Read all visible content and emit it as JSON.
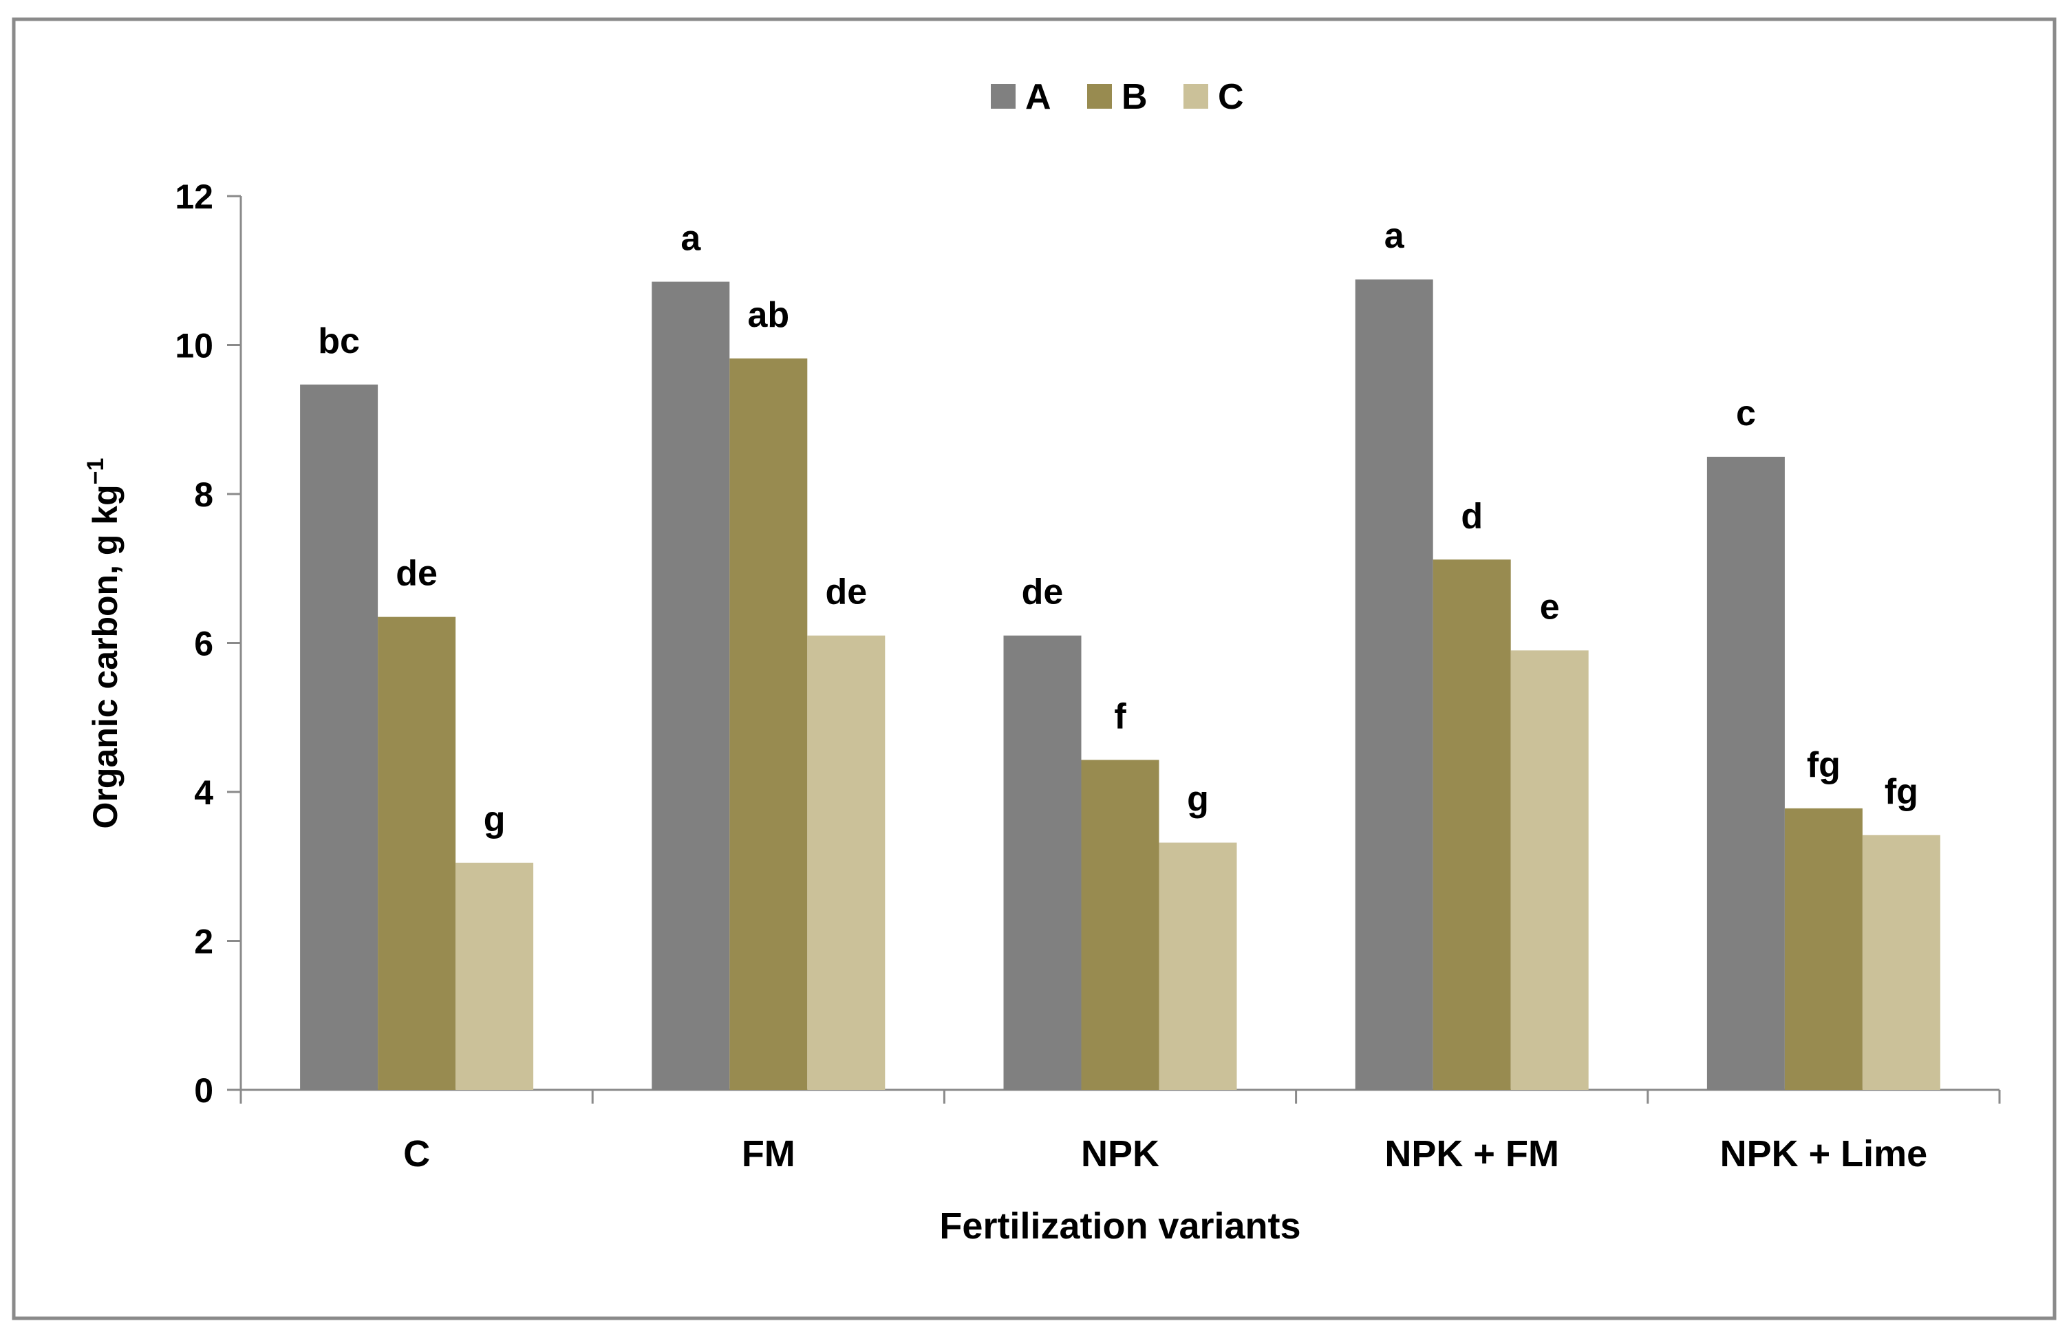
{
  "chart_data": {
    "type": "bar",
    "title": "",
    "xlabel": "Fertilization variants",
    "ylabel_main": "Organic carbon, g kg",
    "ylabel_sup": "−1",
    "categories": [
      "C",
      "FM",
      "NPK",
      "NPK + FM",
      "NPK + Lime"
    ],
    "ylim": [
      0,
      12
    ],
    "yticks": [
      0,
      2,
      4,
      6,
      8,
      10,
      12
    ],
    "grid": false,
    "legend_position": "top-center",
    "series": [
      {
        "name": "A",
        "color": "#808080",
        "values": [
          9.47,
          10.85,
          6.1,
          10.88,
          8.5
        ],
        "letters": [
          "bc",
          "a",
          "de",
          "a",
          "c"
        ]
      },
      {
        "name": "B",
        "color": "#988b50",
        "values": [
          6.35,
          9.82,
          4.43,
          7.12,
          3.78
        ],
        "letters": [
          "de",
          "ab",
          "f",
          "d",
          "fg"
        ]
      },
      {
        "name": "C",
        "color": "#cbc199",
        "values": [
          3.05,
          6.1,
          3.32,
          5.9,
          3.42
        ],
        "letters": [
          "g",
          "de",
          "g",
          "e",
          "fg"
        ]
      }
    ]
  }
}
